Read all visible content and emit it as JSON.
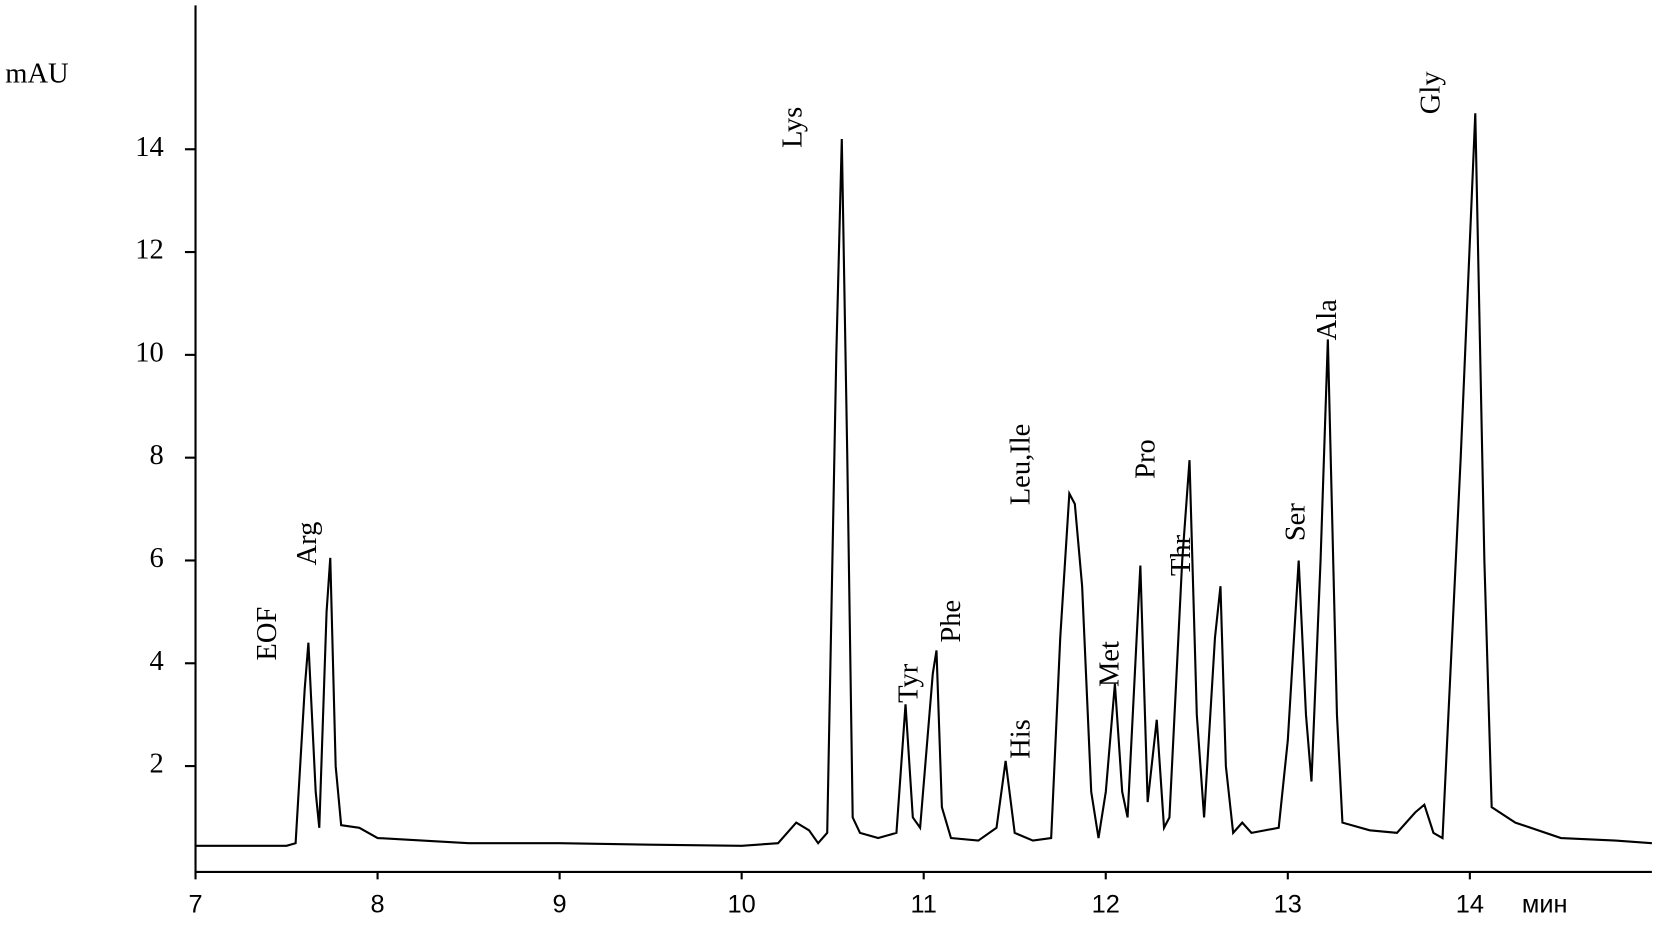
{
  "chart_data": {
    "type": "line",
    "y_label": "mAU",
    "x_label": "мин",
    "xlim": [
      7,
      15
    ],
    "xticks": [
      7,
      8,
      9,
      10,
      11,
      12,
      13,
      14
    ],
    "ylim": [
      -0.06,
      16.8
    ],
    "yticks": [
      2,
      4,
      6,
      8,
      10,
      12,
      14
    ],
    "color": "#000000",
    "x": [
      7.0,
      7.5,
      7.55,
      7.6,
      7.62,
      7.66,
      7.68,
      7.72,
      7.74,
      7.77,
      7.8,
      7.9,
      8.0,
      8.5,
      9.0,
      9.5,
      10.0,
      10.2,
      10.3,
      10.37,
      10.42,
      10.47,
      10.52,
      10.55,
      10.58,
      10.61,
      10.65,
      10.75,
      10.85,
      10.9,
      10.94,
      10.98,
      11.05,
      11.07,
      11.1,
      11.15,
      11.3,
      11.4,
      11.45,
      11.5,
      11.6,
      11.7,
      11.75,
      11.8,
      11.83,
      11.87,
      11.92,
      11.96,
      12.0,
      12.05,
      12.09,
      12.12,
      12.17,
      12.19,
      12.23,
      12.28,
      12.32,
      12.35,
      12.42,
      12.46,
      12.5,
      12.54,
      12.6,
      12.63,
      12.66,
      12.7,
      12.75,
      12.8,
      12.95,
      13.0,
      13.06,
      13.1,
      13.13,
      13.18,
      13.22,
      13.27,
      13.3,
      13.45,
      13.6,
      13.7,
      13.75,
      13.8,
      13.85,
      13.95,
      14.03,
      14.08,
      14.12,
      14.25,
      14.5,
      14.8,
      15.0
    ],
    "values": [
      0.45,
      0.45,
      0.5,
      3.5,
      4.4,
      1.5,
      0.8,
      5.0,
      6.05,
      2.0,
      0.85,
      0.8,
      0.6,
      0.5,
      0.5,
      0.47,
      0.45,
      0.5,
      0.9,
      0.75,
      0.5,
      0.7,
      10.0,
      14.2,
      8.0,
      1.0,
      0.7,
      0.6,
      0.7,
      3.2,
      1.0,
      0.8,
      3.8,
      4.25,
      1.2,
      0.6,
      0.55,
      0.8,
      2.1,
      0.7,
      0.55,
      0.6,
      4.5,
      7.3,
      7.1,
      5.5,
      1.5,
      0.6,
      1.5,
      3.6,
      1.5,
      1.0,
      4.5,
      5.9,
      1.3,
      2.9,
      0.8,
      1.0,
      6.0,
      7.95,
      3.0,
      1.0,
      4.5,
      5.5,
      2.0,
      0.7,
      0.9,
      0.7,
      0.8,
      2.5,
      6.0,
      3.0,
      1.7,
      6.0,
      10.3,
      3.0,
      0.9,
      0.75,
      0.7,
      1.1,
      1.25,
      0.7,
      0.6,
      8.0,
      14.7,
      6.0,
      1.2,
      0.9,
      0.6,
      0.55,
      0.5
    ],
    "peak_labels": [
      "EOF",
      "Arg",
      "Lys",
      "Tyr",
      "Phe",
      "Leu,Ile",
      "His",
      "Met",
      "Pro",
      "Thr",
      "Ser",
      "Ala",
      "Gly"
    ]
  }
}
